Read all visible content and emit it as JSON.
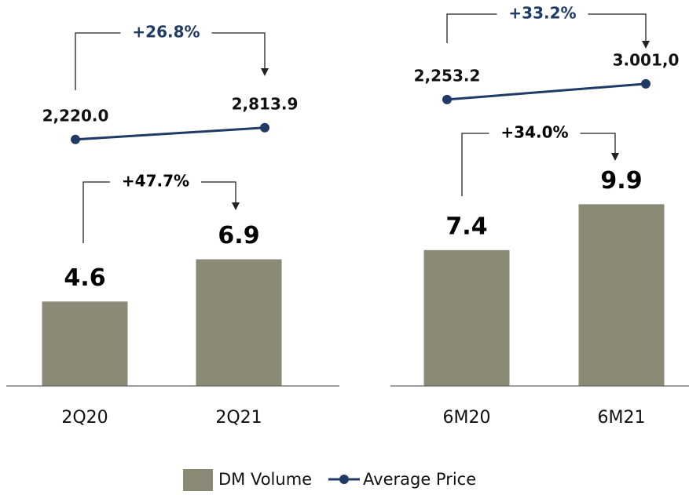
{
  "chart_data": [
    {
      "type": "bar",
      "categories": [
        "2Q20",
        "2Q21"
      ],
      "series": [
        {
          "type": "bar",
          "color": "#8b8a77",
          "values": [
            4.6,
            6.9
          ]
        },
        {
          "type": "line",
          "axis": "y2",
          "color": "#1f3a64",
          "values": [
            2220.0,
            2813.9
          ],
          "value_labels": [
            "2,220.0",
            "2,813.9"
          ]
        }
      ],
      "ylim": [
        0,
        20
      ],
      "y2lim": [
        -10200,
        8300
      ],
      "annotations": [
        "+26.8%",
        "+47.7%"
      ]
    },
    {
      "type": "bar",
      "categories": [
        "6M20",
        "6M21"
      ],
      "series": [
        {
          "type": "bar",
          "color": "#8b8a77",
          "values": [
            7.4,
            9.9
          ]
        },
        {
          "type": "line",
          "axis": "y2",
          "color": "#1f3a64",
          "values": [
            2253.2,
            3001.0
          ],
          "value_labels": [
            "2,253.2",
            "3.001,0"
          ]
        }
      ],
      "ylim": [
        0,
        20
      ],
      "y2lim": [
        -11400,
        6100
      ],
      "annotations": [
        "+33.2%",
        "+34.0%"
      ]
    }
  ],
  "legend": [
    {
      "name": "DM Volume",
      "color": "#8b8a77"
    },
    {
      "name": "Average Price",
      "color": "#1f3a64"
    }
  ]
}
